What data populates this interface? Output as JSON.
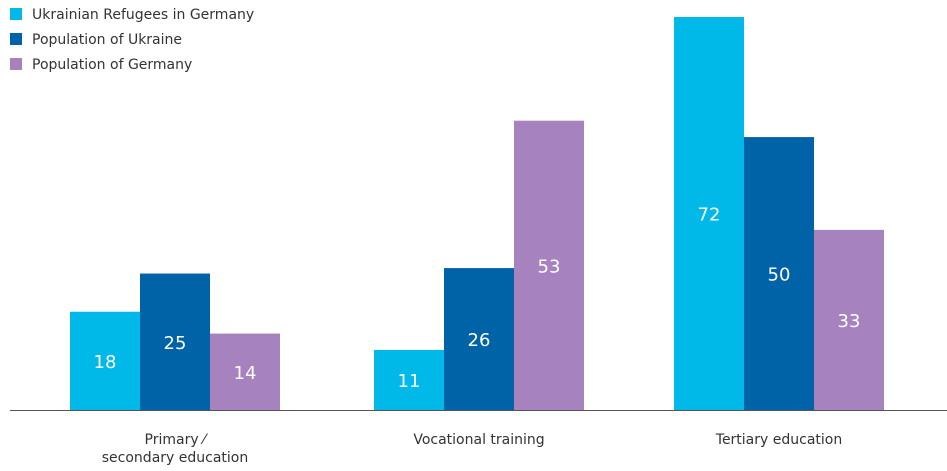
{
  "chart_data": {
    "type": "bar",
    "categories": [
      "Primary ⁄\nsecondary education",
      "Vocational training",
      "Tertiary education"
    ],
    "series": [
      {
        "name": "Ukrainian Refugees in Germany",
        "color": "#00b9e8",
        "values": [
          18,
          11,
          72
        ]
      },
      {
        "name": "Population of Ukraine",
        "color": "#0062a7",
        "values": [
          25,
          26,
          50
        ]
      },
      {
        "name": "Population of Germany",
        "color": "#a682be",
        "values": [
          14,
          53,
          33
        ]
      }
    ],
    "legend": "top-left"
  }
}
